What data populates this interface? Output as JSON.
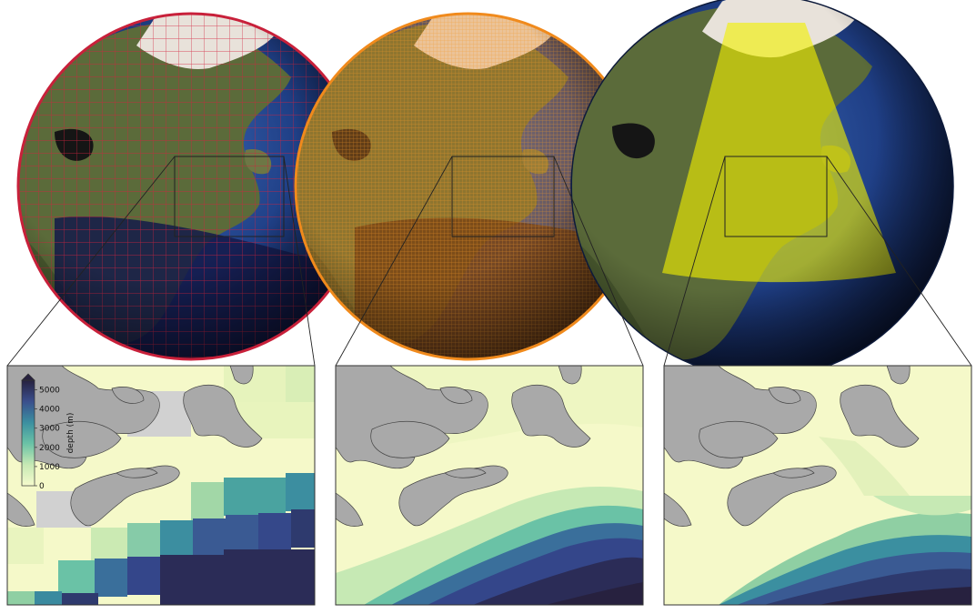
{
  "colors": {
    "land": "#a9a9a9",
    "land_outline": "#444444",
    "shallow": "#f5f9c9",
    "mid": "#8fcfa3",
    "deep": "#2e3a6e",
    "deepest": "#27213f",
    "grid_red": "#c8203a",
    "grid_orange": "#f08a1c",
    "domain_yellow": "#f2f000",
    "ocean_blue": "#1c3b7a"
  },
  "colorbar": {
    "label": "depth (m)",
    "ticks": [
      "5000",
      "4000",
      "3000",
      "2000",
      "1000",
      "0"
    ],
    "min": 0,
    "max": 5500
  },
  "panels": [
    {
      "globe_grid": "coarse-red-grid",
      "resolution": "coarse"
    },
    {
      "globe_grid": "fine-orange-grid",
      "resolution": "medium"
    },
    {
      "globe_grid": "regional-yellow-domain",
      "resolution": "high"
    }
  ]
}
